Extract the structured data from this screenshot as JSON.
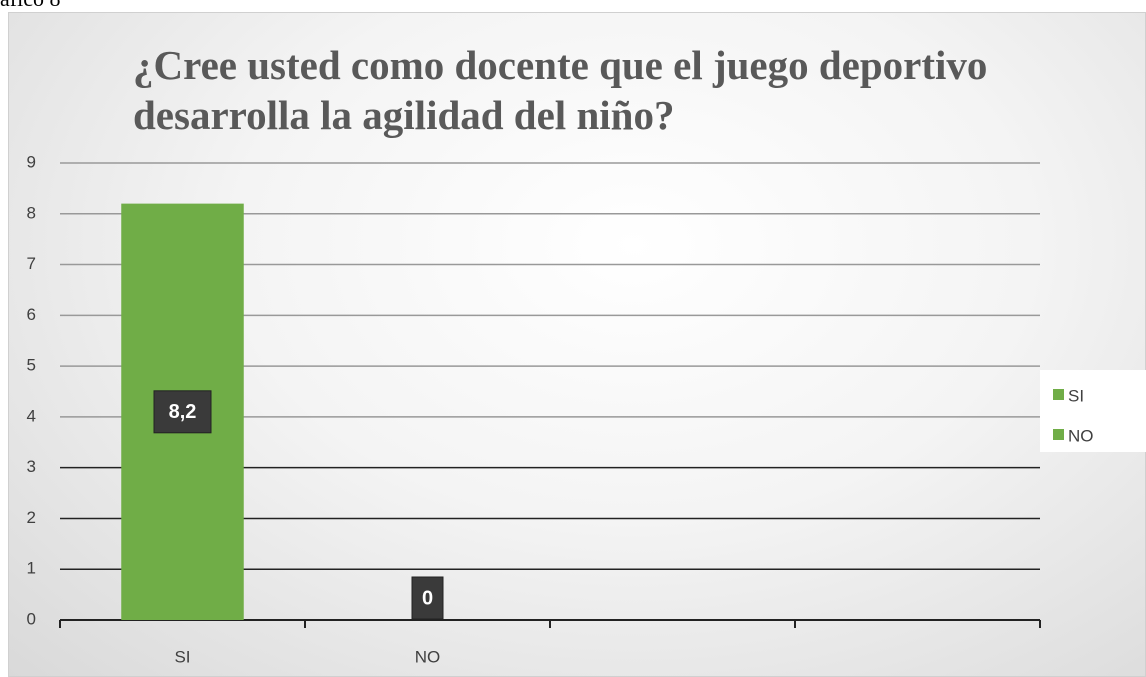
{
  "caption": "áfico 8",
  "chart_data": {
    "type": "bar",
    "title": "¿Cree usted como docente que el juego deportivo desarrolla la agilidad del niño?",
    "categories": [
      "SI",
      "NO",
      null,
      null
    ],
    "values": [
      8.2,
      0,
      null,
      null
    ],
    "value_labels": [
      "8,2",
      "0",
      null,
      null
    ],
    "color": "#70ad47",
    "ylim": [
      0,
      9
    ],
    "yticks": [
      0,
      1,
      2,
      3,
      4,
      5,
      6,
      7,
      8,
      9
    ],
    "grid": true,
    "legend": "right"
  }
}
